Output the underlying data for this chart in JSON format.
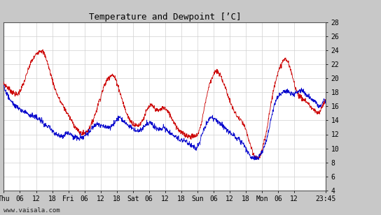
{
  "title": "Temperature and Dewpoint [’C]",
  "ylabel_right_ticks": [
    4,
    6,
    8,
    10,
    12,
    14,
    16,
    18,
    20,
    22,
    24,
    26,
    28
  ],
  "ylim": [
    4,
    28
  ],
  "plot_bg_color": "#ffffff",
  "outer_bg_color": "#c8c8c8",
  "grid_color": "#d0d0d0",
  "temp_color": "#cc0000",
  "dew_color": "#0000cc",
  "watermark": "www.vaisala.com",
  "x_tick_labels": [
    "Thu",
    "06",
    "12",
    "18",
    "Fri",
    "06",
    "12",
    "18",
    "Sat",
    "06",
    "12",
    "18",
    "Sun",
    "06",
    "12",
    "18",
    "Mon",
    "06",
    "12",
    "23:45"
  ],
  "x_tick_positions": [
    0,
    6,
    12,
    18,
    24,
    30,
    36,
    42,
    48,
    54,
    60,
    66,
    72,
    78,
    84,
    90,
    96,
    102,
    108,
    119.75
  ],
  "total_hours": 119.75,
  "temp_data": [
    19.2,
    19.0,
    18.7,
    18.4,
    18.1,
    17.9,
    17.7,
    17.8,
    18.2,
    18.8,
    19.5,
    20.3,
    21.2,
    22.0,
    22.6,
    23.0,
    23.5,
    23.8,
    24.0,
    23.9,
    23.5,
    22.8,
    21.8,
    20.8,
    19.8,
    18.8,
    18.0,
    17.3,
    16.7,
    16.2,
    15.7,
    15.2,
    14.7,
    14.2,
    13.7,
    13.2,
    12.8,
    12.4,
    12.2,
    12.1,
    12.2,
    12.4,
    12.8,
    13.3,
    14.0,
    14.8,
    15.7,
    16.7,
    17.5,
    18.5,
    19.2,
    19.8,
    20.2,
    20.5,
    20.4,
    20.0,
    19.3,
    18.4,
    17.4,
    16.5,
    15.5,
    14.8,
    14.2,
    13.8,
    13.5,
    13.3,
    13.3,
    13.4,
    13.8,
    14.3,
    15.0,
    15.6,
    16.0,
    16.1,
    15.9,
    15.6,
    15.4,
    15.5,
    15.7,
    15.8,
    15.6,
    15.2,
    14.8,
    14.3,
    13.8,
    13.3,
    12.8,
    12.5,
    12.2,
    12.0,
    11.9,
    11.8,
    11.7,
    11.7,
    11.7,
    11.8,
    12.2,
    13.0,
    14.2,
    15.8,
    17.2,
    18.5,
    19.5,
    20.2,
    20.8,
    21.0,
    20.8,
    20.4,
    19.8,
    19.0,
    18.2,
    17.3,
    16.5,
    15.8,
    15.2,
    14.7,
    14.3,
    14.0,
    13.6,
    13.0,
    12.2,
    11.2,
    10.2,
    9.3,
    8.8,
    8.6,
    8.8,
    9.3,
    10.2,
    11.5,
    13.0,
    14.8,
    16.5,
    18.0,
    19.5,
    20.5,
    21.2,
    22.0,
    22.5,
    22.8,
    22.5,
    21.8,
    20.8,
    19.8,
    18.8,
    18.0,
    17.5,
    17.2,
    17.0,
    16.8,
    16.5,
    16.2,
    15.8,
    15.5,
    15.2,
    15.0,
    15.2,
    15.8,
    16.5,
    16.8
  ],
  "dew_data": [
    18.8,
    18.2,
    17.5,
    17.0,
    16.6,
    16.3,
    16.0,
    15.8,
    15.5,
    15.4,
    15.3,
    15.2,
    15.0,
    14.8,
    14.7,
    14.6,
    14.4,
    14.2,
    14.0,
    13.8,
    13.5,
    13.2,
    13.0,
    12.8,
    12.5,
    12.2,
    12.0,
    11.8,
    11.8,
    11.8,
    12.0,
    12.2,
    12.2,
    12.0,
    11.8,
    11.6,
    11.5,
    11.4,
    11.5,
    11.6,
    11.8,
    12.0,
    12.3,
    12.7,
    13.0,
    13.3,
    13.5,
    13.5,
    13.3,
    13.2,
    13.0,
    13.0,
    13.0,
    13.2,
    13.5,
    13.8,
    14.2,
    14.5,
    14.3,
    14.0,
    13.7,
    13.4,
    13.2,
    13.0,
    12.8,
    12.6,
    12.5,
    12.6,
    12.8,
    13.0,
    13.3,
    13.5,
    13.7,
    13.5,
    13.2,
    13.0,
    12.8,
    12.8,
    12.9,
    13.0,
    12.8,
    12.5,
    12.2,
    12.0,
    11.8,
    11.6,
    11.4,
    11.3,
    11.2,
    11.1,
    11.0,
    10.8,
    10.6,
    10.4,
    10.2,
    10.0,
    10.5,
    11.2,
    12.0,
    12.8,
    13.5,
    14.0,
    14.3,
    14.3,
    14.2,
    14.0,
    13.8,
    13.5,
    13.2,
    13.0,
    12.7,
    12.4,
    12.2,
    12.0,
    11.8,
    11.5,
    11.3,
    11.0,
    10.7,
    10.2,
    9.7,
    9.2,
    8.8,
    8.7,
    8.6,
    8.6,
    8.8,
    9.2,
    9.8,
    10.5,
    11.5,
    12.8,
    14.2,
    15.5,
    16.5,
    17.2,
    17.5,
    17.8,
    18.0,
    18.2,
    18.2,
    18.0,
    17.8,
    17.7,
    17.8,
    18.0,
    18.2,
    18.3,
    18.2,
    17.8,
    17.5,
    17.2,
    17.0,
    16.8,
    16.5,
    16.2,
    16.0,
    16.2,
    16.8,
    16.5
  ]
}
